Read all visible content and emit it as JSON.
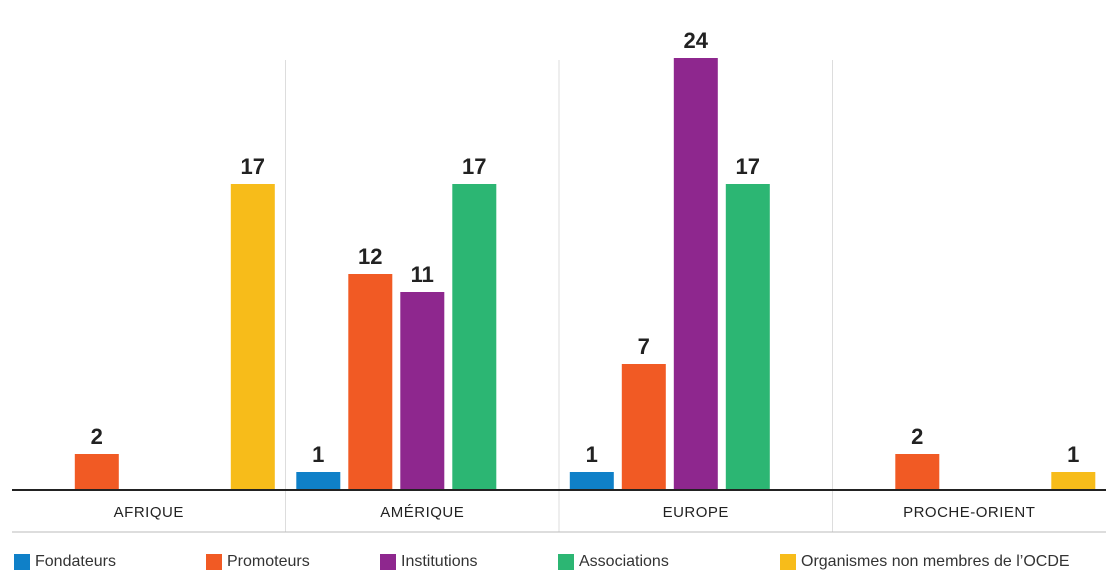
{
  "chart_data": {
    "type": "bar",
    "categories": [
      "AFRIQUE",
      "AMÉRIQUE",
      "EUROPE",
      "PROCHE-ORIENT"
    ],
    "series": [
      {
        "name": "Fondateurs",
        "color": "#0f80c8",
        "values": [
          null,
          1,
          1,
          null
        ]
      },
      {
        "name": "Promoteurs",
        "color": "#f15a24",
        "values": [
          2,
          12,
          7,
          2
        ]
      },
      {
        "name": "Institutions",
        "color": "#8e278e",
        "values": [
          null,
          11,
          24,
          null
        ]
      },
      {
        "name": "Associations",
        "color": "#2cb673",
        "values": [
          null,
          17,
          17,
          null
        ]
      },
      {
        "name": "Organismes non membres de l’OCDE",
        "color": "#f7bc1a",
        "values": [
          17,
          null,
          null,
          1
        ]
      }
    ],
    "ylim": [
      0,
      25
    ],
    "grid": false,
    "legend_position": "bottom"
  }
}
